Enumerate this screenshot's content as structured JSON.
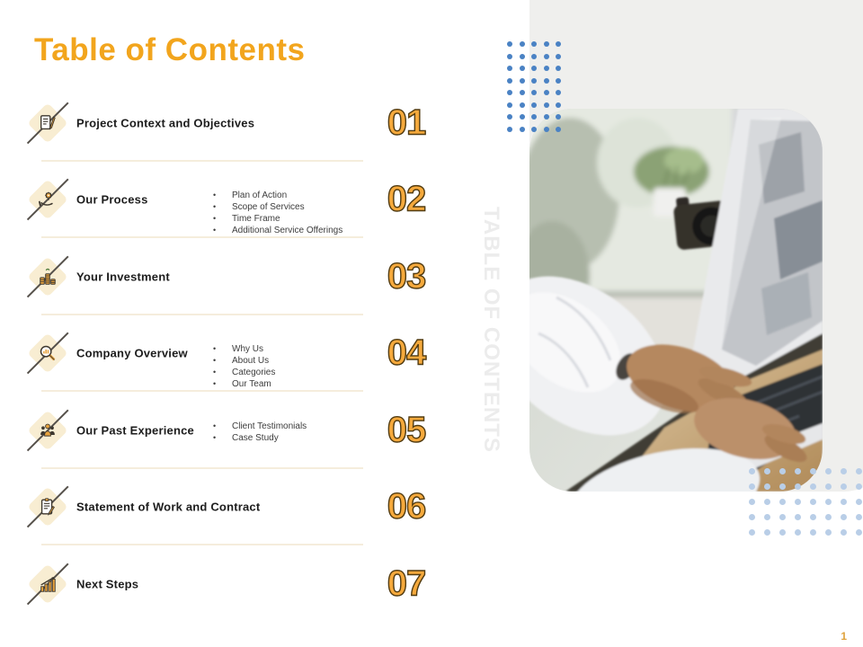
{
  "page": {
    "title": "Table of Contents",
    "watermark": "TABLE OF CONTENTS",
    "page_number": "1"
  },
  "toc": {
    "items": [
      {
        "number": "01",
        "label": "Project Context and Objectives",
        "icon": "clipboard-pencil-icon",
        "bullets": []
      },
      {
        "number": "02",
        "label": "Our Process",
        "icon": "hand-gear-icon",
        "bullets": [
          "Plan of Action",
          "Scope of Services",
          "Time Frame",
          "Additional Service Offerings"
        ]
      },
      {
        "number": "03",
        "label": "Your Investment",
        "icon": "coin-stacks-icon",
        "bullets": []
      },
      {
        "number": "04",
        "label": "Company Overview",
        "icon": "magnifier-chart-icon",
        "bullets": [
          "Why Us",
          "About Us",
          "Categories",
          "Our Team"
        ]
      },
      {
        "number": "05",
        "label": "Our Past Experience",
        "icon": "team-icon",
        "bullets": [
          "Client Testimonials",
          "Case Study"
        ]
      },
      {
        "number": "06",
        "label": "Statement of Work and Contract",
        "icon": "contract-pen-icon",
        "bullets": []
      },
      {
        "number": "07",
        "label": "Next Steps",
        "icon": "growth-bars-icon",
        "bullets": []
      }
    ]
  },
  "decor": {
    "photo_alt": "hands-typing-on-dell-laptop-photo",
    "dots_top": {
      "cols": 5,
      "rows": 8
    },
    "dots_bottom": {
      "cols": 8,
      "rows": 5
    }
  },
  "colors": {
    "accent": "#F2A51D",
    "num_fill": "#F5A93C",
    "num_stroke": "#523C12",
    "diamond_bg": "#F8EDD2",
    "divider": "#F5EDDC",
    "panel_gray": "#EFEFED",
    "dots_top_blue": "#4A82C4",
    "dots_bottom_blue": "#B9CEE7",
    "text_dark": "#1D1D1D",
    "bullet_text": "#3C3C3C",
    "page_number_orange": "#DFA23C",
    "watermark_gray": "#ECECEC"
  }
}
